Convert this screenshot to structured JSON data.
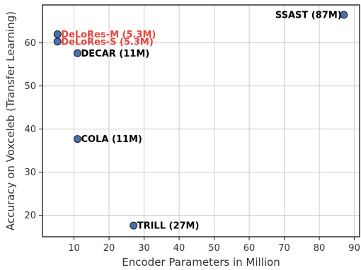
{
  "chart_data": {
    "type": "scatter",
    "title": "",
    "xlabel": "Encoder Parameters in Million",
    "ylabel": "Accuracy on Voxceleb (Transfer Learning)",
    "xlim": [
      1,
      91.5
    ],
    "ylim": [
      15,
      68.8
    ],
    "xticks": [
      10,
      20,
      30,
      40,
      50,
      60,
      70,
      80,
      90
    ],
    "yticks": [
      20,
      30,
      40,
      50,
      60
    ],
    "grid": true,
    "points": [
      {
        "label": "SSAST (87M)",
        "x": 87,
        "y": 66.5,
        "color": "#000000",
        "anchor": "end"
      },
      {
        "label": "DeLoRes-M (5.3M)",
        "x": 5.3,
        "y": 62.0,
        "color": "#e8433a",
        "anchor": "start"
      },
      {
        "label": "DeLoRes-S (5.3M)",
        "x": 5.3,
        "y": 60.3,
        "color": "#e8433a",
        "anchor": "start"
      },
      {
        "label": "DECAR (11M)",
        "x": 11,
        "y": 57.6,
        "color": "#000000",
        "anchor": "start"
      },
      {
        "label": "COLA (11M)",
        "x": 11,
        "y": 37.7,
        "color": "#000000",
        "anchor": "start"
      },
      {
        "label": "TRILL (27M)",
        "x": 27,
        "y": 17.6,
        "color": "#000000",
        "anchor": "start"
      }
    ],
    "marker_color": "#4a6fb5",
    "marker_edge": "#1a1a1a"
  }
}
